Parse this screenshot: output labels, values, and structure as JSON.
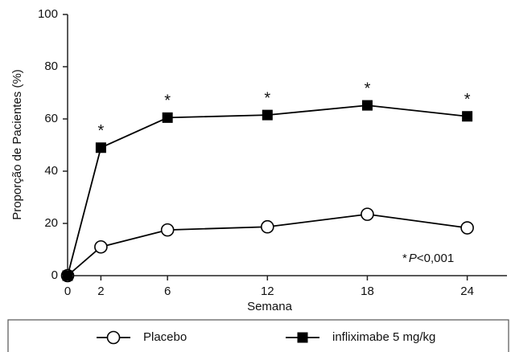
{
  "chart_data": {
    "type": "line",
    "x_label": "Semana",
    "y_label": "Proporção de Pacientes (%)",
    "x": [
      0,
      2,
      6,
      12,
      18,
      24
    ],
    "series": [
      {
        "name": "Placebo",
        "color": "#000000",
        "marker": "circle",
        "values": [
          0,
          11,
          17.5,
          18.7,
          23.5,
          18.3
        ]
      },
      {
        "name": "infliximabe 5 mg/kg",
        "color": "#000000",
        "marker": "square",
        "values": [
          0,
          49,
          60.5,
          61.5,
          65.2,
          61
        ]
      }
    ],
    "significance": {
      "label": "*",
      "x": [
        2,
        6,
        12,
        18,
        24
      ]
    },
    "p_note": {
      "star": "*",
      "p": "P",
      "rest": "<0,001"
    },
    "xlim": [
      0,
      26
    ],
    "xticks": [
      0,
      2,
      6,
      12,
      18,
      24
    ],
    "ylim": [
      0,
      100
    ],
    "yticks": [
      0,
      20,
      40,
      60,
      80,
      100
    ],
    "legend": "bottom",
    "grid": false
  }
}
